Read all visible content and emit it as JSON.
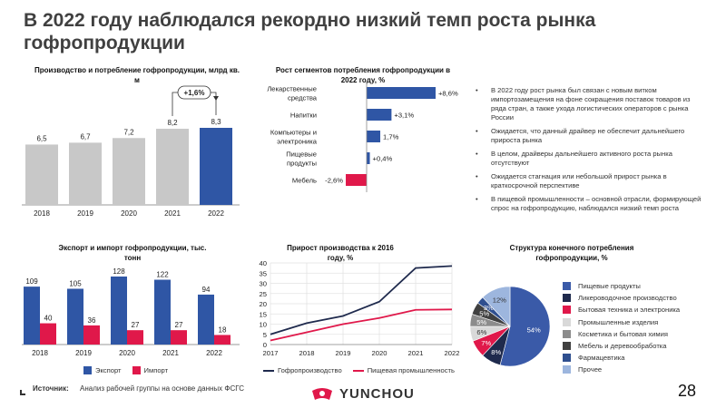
{
  "title": "В 2022 году наблюдался рекордно низкий темп роста рынка гофропродукции",
  "chart_data": [
    {
      "type": "bar",
      "title": "Производство и потребление гофропродукции, млрд кв. м",
      "categories": [
        "2018",
        "2019",
        "2020",
        "2021",
        "2022"
      ],
      "values": [
        6.5,
        6.7,
        7.2,
        8.2,
        8.3
      ],
      "value_labels": [
        "6,5",
        "6,7",
        "7,2",
        "8,2",
        "8,3"
      ],
      "annotation": "+1,6%",
      "colors": [
        "#c8c8c8",
        "#c8c8c8",
        "#c8c8c8",
        "#c8c8c8",
        "#2f56a5"
      ]
    },
    {
      "type": "bar",
      "orientation": "horizontal",
      "title": "Рост сегментов потребления гофропродукции в 2022 году, %",
      "categories": [
        "Лекарственные средства",
        "Напитки",
        "Компьютеры и электроника",
        "Пищевые продукты",
        "Мебель"
      ],
      "values": [
        8.6,
        3.1,
        1.7,
        0.4,
        -2.6
      ],
      "value_labels": [
        "+8,6%",
        "+3,1%",
        "1,7%",
        "+0,4%",
        "-2,6%"
      ],
      "colors": [
        "#2f56a5",
        "#2f56a5",
        "#2f56a5",
        "#2f56a5",
        "#e0184a"
      ]
    },
    {
      "type": "bar",
      "title": "Экспорт и импорт гофропродукции, тыс. тонн",
      "categories": [
        "2018",
        "2019",
        "2020",
        "2021",
        "2022"
      ],
      "series": [
        {
          "name": "Экспорт",
          "values": [
            109,
            105,
            128,
            122,
            94
          ],
          "color": "#2f56a5"
        },
        {
          "name": "Импорт",
          "values": [
            40,
            36,
            27,
            27,
            18
          ],
          "color": "#e0184a"
        }
      ]
    },
    {
      "type": "line",
      "title": "Прирост производства к 2016 году, %",
      "x": [
        "2017",
        "2018",
        "2019",
        "2020",
        "2021",
        "2022"
      ],
      "ylim": [
        0,
        40
      ],
      "yticks": [
        0,
        5,
        10,
        15,
        20,
        25,
        30,
        35,
        40
      ],
      "series": [
        {
          "name": "Гофропроизводство",
          "values": [
            5,
            10.5,
            14,
            21,
            37.5,
            38.5
          ],
          "color": "#1f2a4d"
        },
        {
          "name": "Пищевая промышленность",
          "values": [
            2,
            6,
            10,
            13,
            17,
            17.2
          ],
          "color": "#e0184a"
        }
      ]
    },
    {
      "type": "pie",
      "title": "Структура конечного потребления гофропродукции, %",
      "categories": [
        "Пищевые продукты",
        "Ликероводочное производство",
        "Бытовая техника и электроника",
        "Промышленные изделия",
        "Косметика и бытовая химия",
        "Мебель и деревообработка",
        "Фармацевтика",
        "Прочее"
      ],
      "values": [
        54,
        8,
        7,
        6,
        5,
        5,
        3,
        12
      ],
      "value_labels": [
        "54%",
        "8%",
        "7%",
        "6%",
        "5%",
        "5%",
        "3%",
        "12%"
      ],
      "colors": [
        "#3a5aa8",
        "#1f2a4d",
        "#e0184a",
        "#d9d9d9",
        "#8c8c8c",
        "#404040",
        "#2f4f8f",
        "#9db6de"
      ]
    }
  ],
  "bullets": [
    "В 2022 году рост рынка был связан с новым витком импортозамещения на фоне сокращения поставок товаров из ряда стран, а также ухода логистических операторов с рынка России",
    "Ожидается, что данный драйвер не обеспечит дальнейшего прироста рынка",
    "В целом, драйверы дальнейшего активного роста рынка отсутствуют",
    "Ожидается стагнация или небольшой прирост рынка в краткосрочной перспективе",
    "В пищевой промышленности – основной отрасли, формирующей спрос на гофропродукцию, наблюдался низкий темп роста"
  ],
  "source_label": "Источник:",
  "source_text": "Анализ рабочей группы на основе данных ФСГС",
  "logo_text": "YUNCHOU",
  "page_number": "28"
}
